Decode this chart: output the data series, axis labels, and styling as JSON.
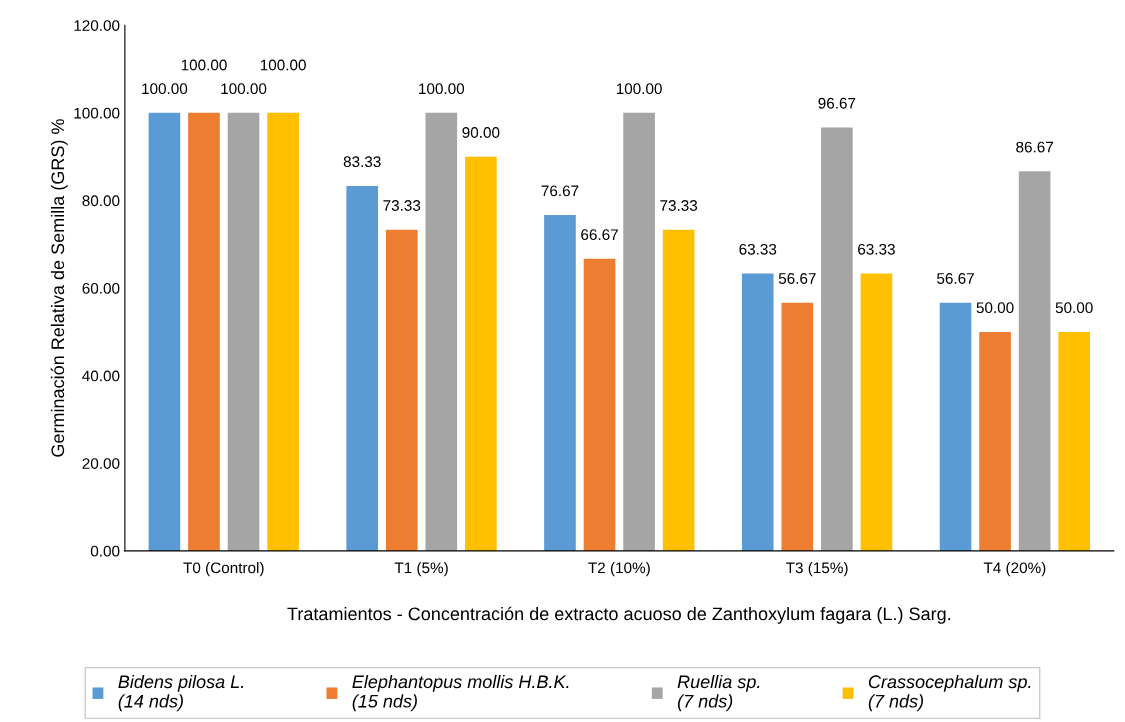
{
  "chart_data": {
    "type": "bar",
    "xlabel": "Tratamientos - Concentración de extracto acuoso de Zanthoxylum fagara (L.) Sarg.",
    "ylabel": "Germinación Relativa de Semilla (GRS) %",
    "categories": [
      "T0 (Control)",
      "T1 (5%)",
      "T2 (10%)",
      "T3 (15%)",
      "T4 (20%)"
    ],
    "series": [
      {
        "name": "Bidens pilosa L.\n(14 nds)",
        "color": "#5b9bd5",
        "values": [
          100,
          83.33,
          76.67,
          63.33,
          56.67
        ],
        "value_labels": [
          "100.00",
          "83.33",
          "76.67",
          "63.33",
          "56.67"
        ]
      },
      {
        "name": "Elephantopus mollis H.B.K.\n(15 nds)",
        "color": "#ed7d31",
        "values": [
          100,
          73.33,
          66.67,
          56.67,
          50
        ],
        "value_labels": [
          "100.00",
          "73.33",
          "66.67",
          "56.67",
          "50.00"
        ]
      },
      {
        "name": "Ruellia sp.\n(7 nds)",
        "color": "#a5a5a5",
        "values": [
          100,
          100,
          100,
          96.67,
          86.67
        ],
        "value_labels": [
          "100.00",
          "100.00",
          "100.00",
          "96.67",
          "86.67"
        ]
      },
      {
        "name": "Crassocephalum sp.\n(7 nds)",
        "color": "#ffc000",
        "values": [
          100,
          90,
          73.33,
          63.33,
          50
        ],
        "value_labels": [
          "100.00",
          "90.00",
          "73.33",
          "63.33",
          "50.00"
        ]
      }
    ],
    "ylim": [
      0,
      120
    ],
    "yticks": [
      {
        "value": 0,
        "label": "0.00"
      },
      {
        "value": 20,
        "label": "20.00"
      },
      {
        "value": 40,
        "label": "40.00"
      },
      {
        "value": 60,
        "label": "60.00"
      },
      {
        "value": 80,
        "label": "80.00"
      },
      {
        "value": 100,
        "label": "100.00"
      },
      {
        "value": 120,
        "label": "120.00"
      }
    ],
    "grid": false,
    "legend": "bottom"
  }
}
